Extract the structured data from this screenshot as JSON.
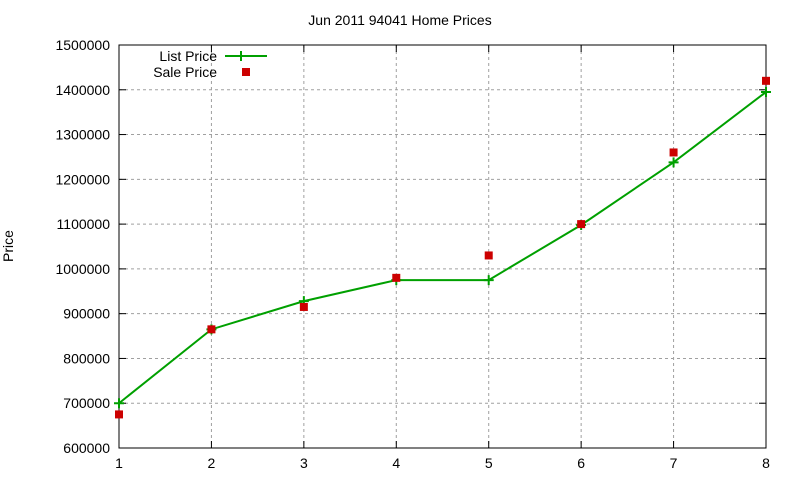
{
  "chart_data": {
    "type": "line",
    "title": "Jun 2011 94041 Home Prices",
    "xlabel": "",
    "ylabel": "Price",
    "x": [
      1,
      2,
      3,
      4,
      5,
      6,
      7,
      8
    ],
    "xticks": [
      "1",
      "2",
      "3",
      "4",
      "5",
      "6",
      "7",
      "8"
    ],
    "yticks": [
      "600000",
      "700000",
      "800000",
      "900000",
      "1000000",
      "1100000",
      "1200000",
      "1300000",
      "1400000",
      "1500000"
    ],
    "xlim": [
      1,
      8
    ],
    "ylim": [
      600000,
      1500000
    ],
    "grid": true,
    "legend_position": "top-left",
    "series": [
      {
        "name": "List Price",
        "style": "linespoints",
        "marker": "plus",
        "color": "#00a000",
        "values": [
          700000,
          865000,
          928000,
          975000,
          975000,
          1098000,
          1238000,
          1395000
        ]
      },
      {
        "name": "Sale Price",
        "style": "points",
        "marker": "square",
        "color": "#cc0000",
        "values": [
          675000,
          865000,
          915000,
          980000,
          1030000,
          1100000,
          1260000,
          1420000
        ]
      }
    ]
  }
}
